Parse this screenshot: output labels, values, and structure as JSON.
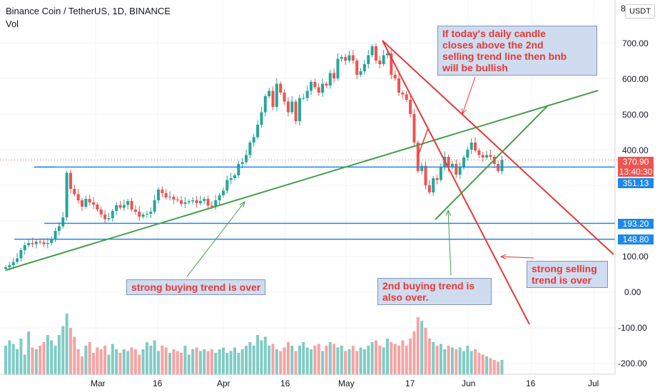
{
  "header": {
    "title": "Binance Coin / TetherUS, 1D, BINANCE",
    "subtitle": "Vol",
    "currency": "USDT",
    "top_right_char": "8"
  },
  "colors": {
    "up": "#26a69a",
    "down": "#ef5350",
    "vol_up": "#80cbc4",
    "vol_down": "#f5a3a3",
    "support": "#1e88e5",
    "green_trend": "#43a047",
    "red_trend": "#e53935",
    "last_price_bg": "#ef5350",
    "callout_bg": "#cfdcf0"
  },
  "axis": {
    "y_ticks": [
      "700.00",
      "600.00",
      "500.00",
      "400.00",
      "100.00",
      "0.00",
      "-100.00",
      "-200.00"
    ],
    "x_ticks": [
      "Mar",
      "16",
      "Apr",
      "16",
      "May",
      "17",
      "Jun",
      "16",
      "Jul"
    ]
  },
  "price_tags": {
    "last_price": "370.90",
    "countdown": "13:40:30",
    "level_1": "351.13",
    "level_2": "193.20",
    "level_3": "148.80"
  },
  "annotations": {
    "callout_top": "If today's daily candle\ncloses above the 2nd\nselling trend line then bnb\nwill be bullish",
    "callout_buying": "strong buying trend is over",
    "callout_second_buying": "2nd buying trend is\nalso over.",
    "callout_selling": "strong selling\ntrend is over"
  },
  "chart_data": {
    "type": "candlestick",
    "title": "Binance Coin / TetherUS, 1D, BINANCE",
    "x_range": [
      "2021-02-05",
      "2021-07-01"
    ],
    "y_range": [
      -240,
      820
    ],
    "horizontal_levels": [
      351.13,
      193.2,
      148.8
    ],
    "last_price": 370.9,
    "closes": [
      70,
      76,
      85,
      95,
      118,
      132,
      138,
      135,
      142,
      140,
      135,
      138,
      150,
      172,
      185,
      210,
      335,
      290,
      275,
      258,
      240,
      262,
      252,
      246,
      232,
      218,
      205,
      208,
      228,
      244,
      237,
      245,
      256,
      232,
      226,
      212,
      218,
      220,
      226,
      258,
      288,
      278,
      266,
      268,
      260,
      258,
      248,
      252,
      255,
      258,
      250,
      256,
      262,
      243,
      240,
      258,
      272,
      285,
      315,
      320,
      328,
      360,
      365,
      385,
      420,
      435,
      470,
      505,
      550,
      565,
      520,
      585,
      560,
      535,
      505,
      535,
      480,
      545,
      545,
      565,
      590,
      575,
      560,
      585,
      580,
      615,
      600,
      655,
      660,
      650,
      665,
      650,
      610,
      620,
      640,
      665,
      690,
      650,
      640,
      665,
      670,
      610,
      600,
      560,
      555,
      540,
      500,
      420,
      340,
      355,
      300,
      280,
      320,
      315,
      350,
      380,
      350,
      360,
      330,
      350,
      378,
      400,
      420,
      398,
      385,
      378,
      385,
      380,
      360,
      340,
      371
    ],
    "volume": [
      -150,
      -135,
      -145,
      -160,
      -130,
      -175,
      -110,
      -155,
      -160,
      -150,
      -140,
      -120,
      -135,
      -150,
      -120,
      -95,
      -60,
      -100,
      -125,
      -160,
      -180,
      -150,
      -140,
      -170,
      -155,
      -160,
      -150,
      -175,
      -145,
      -160,
      -170,
      -160,
      -165,
      -155,
      -160,
      -175,
      -160,
      -140,
      -150,
      -135,
      -165,
      -150,
      -155,
      -170,
      -160,
      -165,
      -170,
      -150,
      -175,
      -160,
      -155,
      -165,
      -160,
      -165,
      -160,
      -170,
      -160,
      -155,
      -170,
      -165,
      -155,
      -170,
      -160,
      -150,
      -140,
      -150,
      -120,
      -135,
      -125,
      -150,
      -145,
      -160,
      -165,
      -155,
      -140,
      -150,
      -165,
      -150,
      -140,
      -155,
      -160,
      -150,
      -145,
      -165,
      -150,
      -140,
      -145,
      -155,
      -150,
      -165,
      -160,
      -150,
      -165,
      -155,
      -160,
      -150,
      -140,
      -135,
      -150,
      -155,
      -130,
      -140,
      -145,
      -150,
      -135,
      -150,
      -130,
      -110,
      -70,
      -80,
      -100,
      -130,
      -140,
      -150,
      -145,
      -160,
      -150,
      -155,
      -160,
      -155,
      -165,
      -150,
      -165,
      -160,
      -170,
      -175,
      -180,
      -185,
      -190,
      -195,
      -190
    ]
  }
}
